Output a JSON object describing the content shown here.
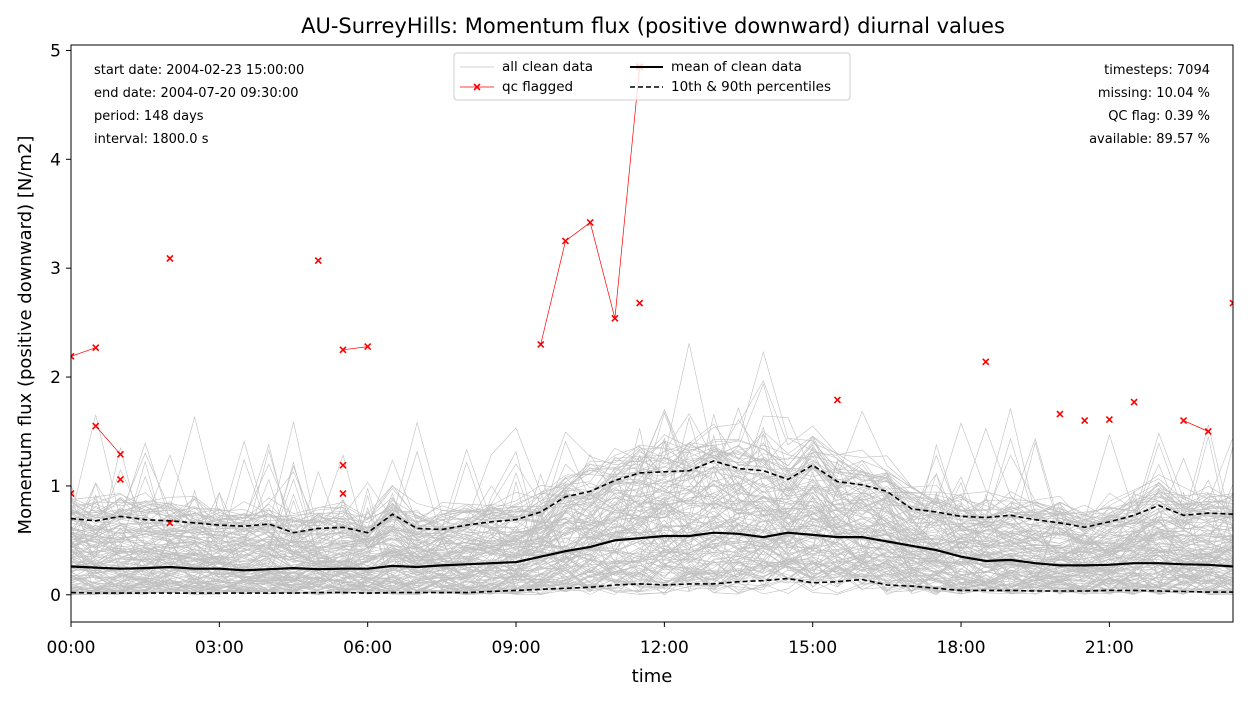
{
  "chart_data": {
    "type": "line",
    "title": "AU-SurreyHills: Momentum flux (positive downward) diurnal values",
    "xlabel": "time",
    "ylabel": "Momentum flux (positive downward) [N/m2]",
    "xlim": [
      0,
      23.5
    ],
    "ylim": [
      -0.25,
      5.05
    ],
    "x_ticks": [
      {
        "value": 0,
        "label": "00:00"
      },
      {
        "value": 3,
        "label": "03:00"
      },
      {
        "value": 6,
        "label": "06:00"
      },
      {
        "value": 9,
        "label": "09:00"
      },
      {
        "value": 12,
        "label": "12:00"
      },
      {
        "value": 15,
        "label": "15:00"
      },
      {
        "value": 18,
        "label": "18:00"
      },
      {
        "value": 21,
        "label": "21:00"
      }
    ],
    "y_ticks": [
      0,
      1,
      2,
      3,
      4,
      5
    ],
    "grid": false,
    "legend": {
      "placement": "top-center",
      "entries": [
        {
          "label": "all clean data",
          "color": "#c0c0c0",
          "style": "thin-line"
        },
        {
          "label": "qc flagged",
          "color": "#ff0000",
          "style": "line-x-marker"
        },
        {
          "label": "mean of clean data",
          "color": "#000000",
          "style": "solid"
        },
        {
          "label": "10th & 90th percentiles",
          "color": "#000000",
          "style": "dashed"
        }
      ]
    },
    "annotations_left": [
      "start date: 2004-02-23 15:00:00",
      "end date: 2004-07-20 09:30:00",
      "period: 148 days",
      "interval: 1800.0 s"
    ],
    "annotations_right": [
      "timesteps: 7094",
      "missing: 10.04 %",
      "QC flag: 0.39 %",
      "available: 89.57 %"
    ],
    "x": [
      0,
      0.5,
      1,
      1.5,
      2,
      2.5,
      3,
      3.5,
      4,
      4.5,
      5,
      5.5,
      6,
      6.5,
      7,
      7.5,
      8,
      8.5,
      9,
      9.5,
      10,
      10.5,
      11,
      11.5,
      12,
      12.5,
      13,
      13.5,
      14,
      14.5,
      15,
      15.5,
      16,
      16.5,
      17,
      17.5,
      18,
      18.5,
      19,
      19.5,
      20,
      20.5,
      21,
      21.5,
      22,
      22.5,
      23,
      23.5
    ],
    "series": [
      {
        "name": "mean of clean data",
        "color": "#000000",
        "dash": false,
        "values": [
          0.26,
          0.25,
          0.24,
          0.245,
          0.255,
          0.24,
          0.24,
          0.225,
          0.235,
          0.245,
          0.235,
          0.24,
          0.24,
          0.265,
          0.255,
          0.27,
          0.28,
          0.29,
          0.3,
          0.35,
          0.4,
          0.44,
          0.5,
          0.52,
          0.54,
          0.54,
          0.57,
          0.56,
          0.53,
          0.57,
          0.55,
          0.53,
          0.53,
          0.49,
          0.45,
          0.41,
          0.35,
          0.31,
          0.32,
          0.29,
          0.27,
          0.27,
          0.275,
          0.29,
          0.29,
          0.28,
          0.275,
          0.26
        ]
      },
      {
        "name": "90th percentile",
        "color": "#000000",
        "dash": true,
        "values": [
          0.7,
          0.68,
          0.72,
          0.69,
          0.68,
          0.66,
          0.64,
          0.63,
          0.65,
          0.57,
          0.61,
          0.62,
          0.57,
          0.74,
          0.61,
          0.6,
          0.64,
          0.67,
          0.69,
          0.76,
          0.9,
          0.95,
          1.05,
          1.12,
          1.13,
          1.14,
          1.23,
          1.16,
          1.14,
          1.06,
          1.19,
          1.04,
          1.01,
          0.95,
          0.79,
          0.76,
          0.72,
          0.71,
          0.73,
          0.69,
          0.66,
          0.62,
          0.67,
          0.73,
          0.82,
          0.73,
          0.75,
          0.74
        ]
      },
      {
        "name": "10th percentile",
        "color": "#000000",
        "dash": true,
        "values": [
          0.02,
          0.015,
          0.015,
          0.015,
          0.015,
          0.015,
          0.015,
          0.015,
          0.015,
          0.015,
          0.02,
          0.02,
          0.015,
          0.02,
          0.02,
          0.02,
          0.02,
          0.03,
          0.04,
          0.05,
          0.06,
          0.07,
          0.09,
          0.1,
          0.09,
          0.1,
          0.1,
          0.12,
          0.13,
          0.15,
          0.11,
          0.12,
          0.14,
          0.09,
          0.08,
          0.06,
          0.04,
          0.04,
          0.04,
          0.035,
          0.035,
          0.035,
          0.04,
          0.04,
          0.035,
          0.03,
          0.025,
          0.025
        ]
      }
    ],
    "qc_flagged_points": [
      {
        "x": 0,
        "y": 2.19
      },
      {
        "x": 0,
        "y": 0.93
      },
      {
        "x": 0.5,
        "y": 2.27
      },
      {
        "x": 0.5,
        "y": 1.55
      },
      {
        "x": 1,
        "y": 1.29
      },
      {
        "x": 1,
        "y": 1.06
      },
      {
        "x": 2,
        "y": 3.09
      },
      {
        "x": 2,
        "y": 0.66
      },
      {
        "x": 5,
        "y": 3.07
      },
      {
        "x": 5.5,
        "y": 2.25
      },
      {
        "x": 5.5,
        "y": 1.19
      },
      {
        "x": 5.5,
        "y": 0.93
      },
      {
        "x": 6,
        "y": 2.28
      },
      {
        "x": 9.5,
        "y": 2.3
      },
      {
        "x": 10,
        "y": 3.25
      },
      {
        "x": 10.5,
        "y": 3.42
      },
      {
        "x": 11,
        "y": 2.54
      },
      {
        "x": 11.5,
        "y": 4.85
      },
      {
        "x": 11.5,
        "y": 2.68
      },
      {
        "x": 15.5,
        "y": 1.79
      },
      {
        "x": 18.5,
        "y": 2.14
      },
      {
        "x": 20,
        "y": 1.66
      },
      {
        "x": 20.5,
        "y": 1.6
      },
      {
        "x": 21,
        "y": 1.61
      },
      {
        "x": 21.5,
        "y": 1.77
      },
      {
        "x": 22.5,
        "y": 1.6
      },
      {
        "x": 23,
        "y": 1.5
      },
      {
        "x": 23.5,
        "y": 2.68
      }
    ],
    "qc_flagged_segments": [
      [
        {
          "x": 0,
          "y": 2.19
        },
        {
          "x": 0.5,
          "y": 2.27
        }
      ],
      [
        {
          "x": 0.5,
          "y": 1.55
        },
        {
          "x": 1,
          "y": 1.29
        }
      ],
      [
        {
          "x": 5.5,
          "y": 2.25
        },
        {
          "x": 6,
          "y": 2.28
        }
      ],
      [
        {
          "x": 9.5,
          "y": 2.3
        },
        {
          "x": 10,
          "y": 3.25
        },
        {
          "x": 10.5,
          "y": 3.42
        },
        {
          "x": 11,
          "y": 2.54
        },
        {
          "x": 11.5,
          "y": 4.85
        }
      ],
      [
        {
          "x": 22.5,
          "y": 1.6
        },
        {
          "x": 23,
          "y": 1.5
        }
      ]
    ]
  }
}
